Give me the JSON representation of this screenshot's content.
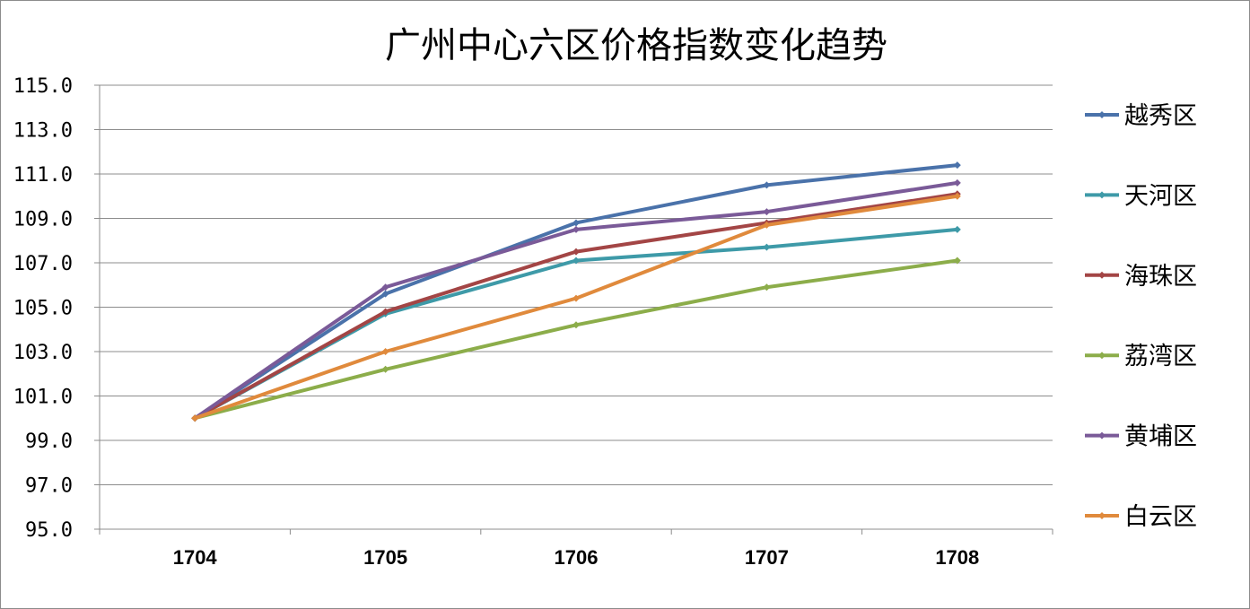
{
  "chart_data": {
    "type": "line",
    "title": "广州中心六区价格指数变化趋势",
    "xlabel": "",
    "ylabel": "",
    "categories": [
      "1704",
      "1705",
      "1706",
      "1707",
      "1708"
    ],
    "ylim": [
      95.0,
      115.0
    ],
    "yticks": [
      "95.0",
      "97.0",
      "99.0",
      "101.0",
      "103.0",
      "105.0",
      "107.0",
      "109.0",
      "111.0",
      "113.0",
      "115.0"
    ],
    "grid": true,
    "legend_position": "right",
    "series": [
      {
        "name": "越秀区",
        "color": "#4a72aa",
        "values": [
          100.0,
          105.6,
          108.8,
          110.5,
          111.4
        ]
      },
      {
        "name": "天河区",
        "color": "#3e9aa8",
        "values": [
          100.0,
          104.7,
          107.1,
          107.7,
          108.5
        ]
      },
      {
        "name": "海珠区",
        "color": "#a34545",
        "values": [
          100.0,
          104.8,
          107.5,
          108.8,
          110.1
        ]
      },
      {
        "name": "荔湾区",
        "color": "#8cad4a",
        "values": [
          100.0,
          102.2,
          104.2,
          105.9,
          107.1
        ]
      },
      {
        "name": "黄埔区",
        "color": "#7a5a98",
        "values": [
          100.0,
          105.9,
          108.5,
          109.3,
          110.6
        ]
      },
      {
        "name": "白云区",
        "color": "#e08a3c",
        "values": [
          100.0,
          103.0,
          105.4,
          108.7,
          110.0
        ]
      }
    ]
  }
}
